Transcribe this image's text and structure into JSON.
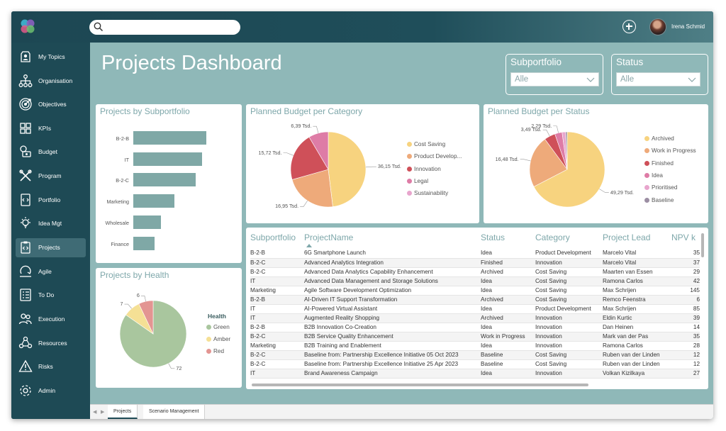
{
  "user": {
    "name": "Irena Schmid"
  },
  "search": {
    "placeholder": ""
  },
  "sidebar": {
    "items": [
      {
        "label": "My Topics",
        "icon": "user-badge-icon"
      },
      {
        "label": "Organisation",
        "icon": "org-chart-icon"
      },
      {
        "label": "Objectives",
        "icon": "target-icon"
      },
      {
        "label": "KPIs",
        "icon": "grid-icon"
      },
      {
        "label": "Budget",
        "icon": "money-icon"
      },
      {
        "label": "Program",
        "icon": "tools-icon"
      },
      {
        "label": "Portfolio",
        "icon": "code-file-icon"
      },
      {
        "label": "Idea Mgt",
        "icon": "lightbulb-icon"
      },
      {
        "label": "Projects",
        "icon": "code-clipboard-icon"
      },
      {
        "label": "Agile",
        "icon": "cycle-icon"
      },
      {
        "label": "To Do",
        "icon": "checklist-icon"
      },
      {
        "label": "Execution",
        "icon": "people-icon"
      },
      {
        "label": "Resources",
        "icon": "resources-icon"
      },
      {
        "label": "Risks",
        "icon": "warning-icon"
      },
      {
        "label": "Admin",
        "icon": "gear-icon"
      }
    ],
    "active": "Projects"
  },
  "page": {
    "title": "Projects Dashboard"
  },
  "filters": {
    "subportfolio": {
      "label": "Subportfolio",
      "value": "Alle"
    },
    "status": {
      "label": "Status",
      "value": "Alle"
    }
  },
  "cards": {
    "by_subportfolio": "Projects by Subportfolio",
    "budget_category": "Planned Budget per Category",
    "budget_status": "Planned Budget per Status",
    "by_health": "Projects by Health"
  },
  "chart_data": [
    {
      "type": "bar",
      "orientation": "horizontal",
      "categories": [
        "B-2-B",
        "IT",
        "B-2-C",
        "Marketing",
        "Wholesale",
        "Finance"
      ],
      "values": [
        34,
        32,
        29,
        19,
        13,
        10
      ],
      "color": "#7fa8a6"
    },
    {
      "type": "pie",
      "labels": [
        "Cost Saving",
        "Product Develop...",
        "Innovation",
        "Legal",
        "Sustainability"
      ],
      "values": [
        36.15,
        16.95,
        15.72,
        6.39,
        0
      ],
      "data_labels": [
        "36,15 Tsd.",
        "16,95 Tsd.",
        "15,72 Tsd.",
        "6,39 Tsd.",
        ""
      ],
      "colors": [
        "#f7d37f",
        "#eeaa7a",
        "#cf5059",
        "#de7ca6",
        "#e8a5cd"
      ]
    },
    {
      "type": "pie",
      "labels": [
        "Archived",
        "Work in Progress",
        "Finished",
        "Idea",
        "Prioritised",
        "Baseline"
      ],
      "values": [
        49.29,
        16.48,
        3.49,
        2.29,
        1.1,
        0.5
      ],
      "data_labels": [
        "49,29 Tsd.",
        "16,48 Tsd.",
        "3,49 Tsd.",
        "2,29 Tsd.",
        "",
        ""
      ],
      "colors": [
        "#f7d37f",
        "#eeaa7a",
        "#cf5059",
        "#de7ca6",
        "#e8a5cd",
        "#9c8ea3"
      ]
    },
    {
      "type": "pie",
      "legend_title": "Health",
      "labels": [
        "Green",
        "Amber",
        "Red"
      ],
      "values": [
        72,
        7,
        6
      ],
      "data_labels": [
        "72",
        "7",
        "6"
      ],
      "colors": [
        "#a9c69e",
        "#f5e095",
        "#e39592"
      ]
    }
  ],
  "table": {
    "columns": [
      "Subportfolio",
      "ProjectName",
      "Status",
      "Category",
      "Project Lead",
      "NPV k"
    ],
    "rows": [
      [
        "B-2-B",
        "6G Smartphone Launch",
        "Idea",
        "Product Development",
        "Marcelo Vital",
        "35"
      ],
      [
        "B-2-C",
        "Advanced Analytics Integration",
        "Finished",
        "Innovation",
        "Marcelo Vital",
        "37"
      ],
      [
        "B-2-C",
        "Advanced Data Analytics Capability Enhancement",
        "Archived",
        "Cost Saving",
        "Maarten van Essen",
        "29"
      ],
      [
        "IT",
        "Advanced Data Management and Storage Solutions",
        "Idea",
        "Cost Saving",
        "Ramona Carlos",
        "42"
      ],
      [
        "Marketing",
        "Agile Software Development Optimization",
        "Idea",
        "Cost Saving",
        "Max Schrijen",
        "145"
      ],
      [
        "B-2-B",
        "AI-Driven IT Support Transformation",
        "Archived",
        "Cost Saving",
        "Remco Feenstra",
        "6"
      ],
      [
        "IT",
        "AI-Powered Virtual Assistant",
        "Idea",
        "Product Development",
        "Max Schrijen",
        "85"
      ],
      [
        "IT",
        "Augmented Reality Shopping",
        "Archived",
        "Innovation",
        "Eldin Kurtic",
        "39"
      ],
      [
        "B-2-B",
        "B2B Innovation Co-Creation",
        "Idea",
        "Innovation",
        "Dan Heinen",
        "14"
      ],
      [
        "B-2-C",
        "B2B Service Quality Enhancement",
        "Work in Progress",
        "Innovation",
        "Mark van der Pas",
        "35"
      ],
      [
        "Marketing",
        "B2B Training and Enablement",
        "Idea",
        "Innovation",
        "Ramona Carlos",
        "28"
      ],
      [
        "B-2-C",
        "Baseline from: Partnership Excellence Initiative 05 Oct 2023",
        "Baseline",
        "Cost Saving",
        "Ruben van der Linden",
        "12"
      ],
      [
        "B-2-C",
        "Baseline from: Partnership Excellence Initiative 25 Apr 2023",
        "Baseline",
        "Cost Saving",
        "Ruben van der Linden",
        "12"
      ],
      [
        "IT",
        "Brand Awareness Campaign",
        "Idea",
        "Innovation",
        "Volkan Kizilkaya",
        "27"
      ]
    ]
  },
  "tabs": [
    "Projects",
    "Scenario Management"
  ],
  "colors": {
    "accent": "#1e4a55",
    "content_bg": "#8fb8b8",
    "bar": "#7fa8a6"
  }
}
